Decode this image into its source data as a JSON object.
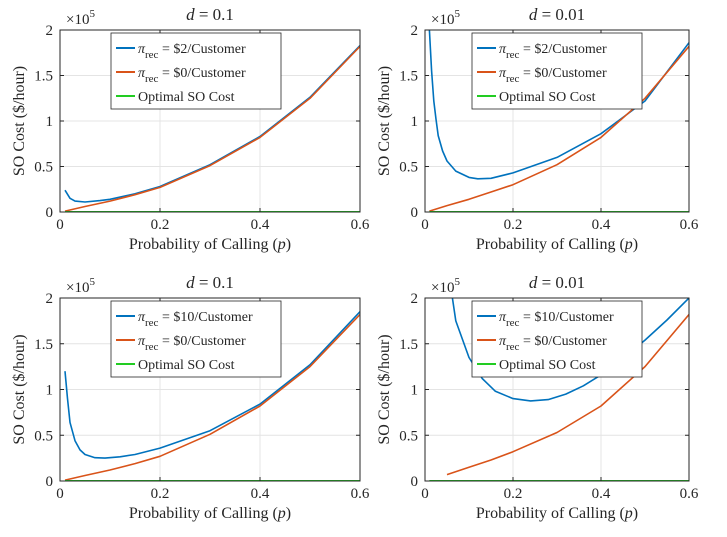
{
  "chart_data": [
    {
      "type": "line",
      "title": "d = 0.1",
      "title_var": "d",
      "title_value": "0.1",
      "xlabel": "Probability of Calling",
      "xlabel_var": "p",
      "ylabel": "SO Cost ($/hour)",
      "y_multiplier": "×10",
      "y_exponent": "5",
      "xlim": [
        0,
        0.6
      ],
      "ylim": [
        0,
        2
      ],
      "xticks": [
        "0",
        "0.2",
        "0.4",
        "0.6"
      ],
      "yticks": [
        "0",
        "0.5",
        "1",
        "1.5",
        "2"
      ],
      "grid": true,
      "legend_position": "top-center",
      "series": [
        {
          "name": "= $2/Customer",
          "name_symbol": "π",
          "name_sub": "rec",
          "color": "#0072BD",
          "x": [
            0.01,
            0.02,
            0.03,
            0.05,
            0.08,
            0.1,
            0.15,
            0.2,
            0.3,
            0.4,
            0.5,
            0.6
          ],
          "y": [
            0.24,
            0.15,
            0.12,
            0.11,
            0.125,
            0.14,
            0.2,
            0.28,
            0.52,
            0.83,
            1.26,
            1.83
          ]
        },
        {
          "name": "= $0/Customer",
          "name_symbol": "π",
          "name_sub": "rec",
          "color": "#D95319",
          "x": [
            0.01,
            0.05,
            0.1,
            0.15,
            0.2,
            0.3,
            0.4,
            0.5,
            0.6
          ],
          "y": [
            0.01,
            0.06,
            0.12,
            0.19,
            0.27,
            0.51,
            0.82,
            1.25,
            1.82
          ]
        },
        {
          "name": "Optimal SO Cost",
          "color": "#22CC22",
          "x": [
            0.01,
            0.6
          ],
          "y": [
            0,
            0
          ]
        }
      ]
    },
    {
      "type": "line",
      "title": "d = 0.01",
      "title_var": "d",
      "title_value": "0.01",
      "xlabel": "Probability of Calling",
      "xlabel_var": "p",
      "ylabel": "SO Cost ($/hour)",
      "y_multiplier": "×10",
      "y_exponent": "5",
      "xlim": [
        0,
        0.6
      ],
      "ylim": [
        0,
        2
      ],
      "xticks": [
        "0",
        "0.2",
        "0.4",
        "0.6"
      ],
      "yticks": [
        "0",
        "0.5",
        "1",
        "1.5",
        "2"
      ],
      "grid": true,
      "legend_position": "top-center",
      "series": [
        {
          "name": "= $2/Customer",
          "name_symbol": "π",
          "name_sub": "rec",
          "color": "#0072BD",
          "x": [
            0.01,
            0.015,
            0.02,
            0.025,
            0.03,
            0.04,
            0.05,
            0.07,
            0.1,
            0.12,
            0.15,
            0.2,
            0.3,
            0.4,
            0.5,
            0.6
          ],
          "y": [
            2.0,
            1.55,
            1.22,
            1.02,
            0.84,
            0.67,
            0.56,
            0.45,
            0.38,
            0.365,
            0.37,
            0.43,
            0.6,
            0.86,
            1.22,
            1.86
          ]
        },
        {
          "name": "= $0/Customer",
          "name_symbol": "π",
          "name_sub": "rec",
          "color": "#D95319",
          "x": [
            0.01,
            0.05,
            0.1,
            0.15,
            0.2,
            0.3,
            0.4,
            0.5,
            0.6
          ],
          "y": [
            0.01,
            0.07,
            0.14,
            0.22,
            0.3,
            0.52,
            0.82,
            1.25,
            1.82
          ]
        },
        {
          "name": "Optimal SO Cost",
          "color": "#22CC22",
          "x": [
            0.01,
            0.6
          ],
          "y": [
            0,
            0
          ]
        }
      ]
    },
    {
      "type": "line",
      "title": "d = 0.1",
      "title_var": "d",
      "title_value": "0.1",
      "xlabel": "Probability of Calling",
      "xlabel_var": "p",
      "ylabel": "SO Cost ($/hour)",
      "y_multiplier": "×10",
      "y_exponent": "5",
      "xlim": [
        0,
        0.6
      ],
      "ylim": [
        0,
        2
      ],
      "xticks": [
        "0",
        "0.2",
        "0.4",
        "0.6"
      ],
      "yticks": [
        "0",
        "0.5",
        "1",
        "1.5",
        "2"
      ],
      "grid": true,
      "legend_position": "top-center",
      "series": [
        {
          "name": "= $10/Customer",
          "name_symbol": "π",
          "name_sub": "rec",
          "color": "#0072BD",
          "x": [
            0.01,
            0.015,
            0.02,
            0.03,
            0.04,
            0.05,
            0.07,
            0.09,
            0.12,
            0.15,
            0.2,
            0.3,
            0.4,
            0.5,
            0.6
          ],
          "y": [
            1.2,
            0.9,
            0.64,
            0.44,
            0.34,
            0.29,
            0.255,
            0.25,
            0.265,
            0.29,
            0.36,
            0.55,
            0.84,
            1.27,
            1.85
          ]
        },
        {
          "name": "= $0/Customer",
          "name_symbol": "π",
          "name_sub": "rec",
          "color": "#D95319",
          "x": [
            0.01,
            0.05,
            0.1,
            0.15,
            0.2,
            0.3,
            0.4,
            0.5,
            0.6
          ],
          "y": [
            0.01,
            0.06,
            0.12,
            0.19,
            0.27,
            0.51,
            0.82,
            1.25,
            1.82
          ]
        },
        {
          "name": "Optimal SO Cost",
          "color": "#22CC22",
          "x": [
            0.01,
            0.6
          ],
          "y": [
            0,
            0
          ]
        }
      ]
    },
    {
      "type": "line",
      "title": "d = 0.01",
      "title_var": "d",
      "title_value": "0.01",
      "xlabel": "Probability of Calling",
      "xlabel_var": "p",
      "ylabel": "SO Cost ($/hour)",
      "y_multiplier": "×10",
      "y_exponent": "5",
      "xlim": [
        0,
        0.6
      ],
      "ylim": [
        0,
        2
      ],
      "xticks": [
        "0",
        "0.2",
        "0.4",
        "0.6"
      ],
      "yticks": [
        "0",
        "0.5",
        "1",
        "1.5",
        "2"
      ],
      "grid": true,
      "legend_position": "top-center",
      "series": [
        {
          "name": "= $10/Customer",
          "name_symbol": "π",
          "name_sub": "rec",
          "color": "#0072BD",
          "x": [
            0.05,
            0.07,
            0.1,
            0.13,
            0.16,
            0.2,
            0.24,
            0.28,
            0.32,
            0.36,
            0.4,
            0.45,
            0.5,
            0.55,
            0.6
          ],
          "y": [
            2.4,
            1.75,
            1.35,
            1.12,
            0.98,
            0.9,
            0.875,
            0.89,
            0.95,
            1.04,
            1.16,
            1.34,
            1.54,
            1.76,
            2.0
          ]
        },
        {
          "name": "= $0/Customer",
          "name_symbol": "π",
          "name_sub": "rec",
          "color": "#D95319",
          "x": [
            0.05,
            0.1,
            0.15,
            0.2,
            0.3,
            0.4,
            0.5,
            0.6
          ],
          "y": [
            0.07,
            0.15,
            0.23,
            0.32,
            0.53,
            0.82,
            1.25,
            1.82
          ]
        },
        {
          "name": "Optimal SO Cost",
          "color": "#22CC22",
          "x": [
            0.01,
            0.6
          ],
          "y": [
            0,
            0
          ]
        }
      ]
    }
  ]
}
